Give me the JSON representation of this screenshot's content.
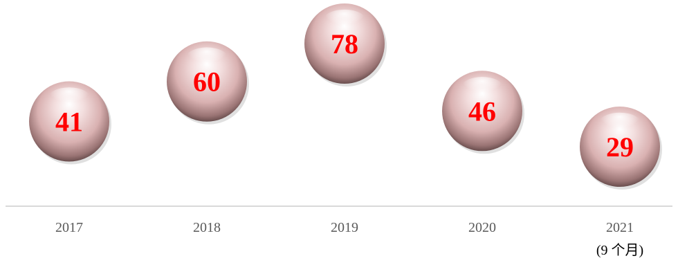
{
  "chart_data": {
    "type": "scatter",
    "categories": [
      "2017",
      "2018",
      "2019",
      "2020",
      "2021"
    ],
    "category_notes": [
      "",
      "",
      "",
      "",
      "(9 个月)"
    ],
    "values": [
      41,
      60,
      78,
      46,
      29
    ],
    "value_label_color": "#ff0000",
    "marker_style": "sphere",
    "marker_color": "#e8c4c4",
    "axis_line_color": "#d9d9d9",
    "tick_label_color": "#595959",
    "grid": false,
    "title": "",
    "xlabel": "",
    "ylabel": ""
  }
}
